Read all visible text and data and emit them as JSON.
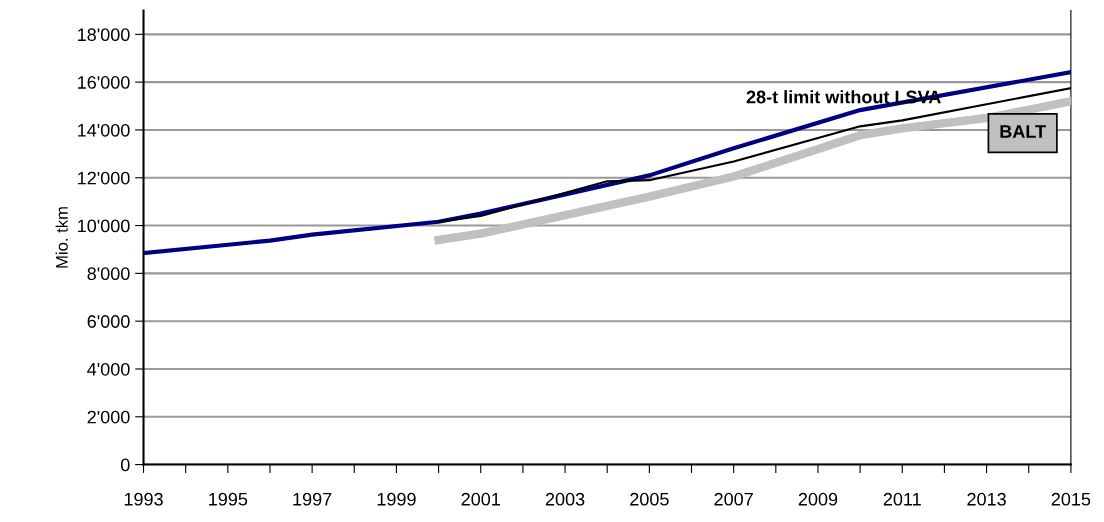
{
  "chart_data": {
    "type": "line",
    "ylabel": "Mio. tkm",
    "xlim": [
      1993,
      2015
    ],
    "ylim": [
      0,
      19000
    ],
    "xticks": [
      1993,
      {
        "value": 1994,
        "label": null
      },
      1995,
      {
        "value": 1996,
        "label": null
      },
      1997,
      {
        "value": 1998,
        "label": null
      },
      1999,
      {
        "value": 2000,
        "label": null
      },
      2001,
      {
        "value": 2002,
        "label": null
      },
      2003,
      {
        "value": 2004,
        "label": null
      },
      2005,
      {
        "value": 2006,
        "label": null
      },
      2007,
      {
        "value": 2008,
        "label": null
      },
      2009,
      {
        "value": 2010,
        "label": null
      },
      2011,
      {
        "value": 2012,
        "label": null
      },
      2013,
      {
        "value": 2014,
        "label": null
      },
      2015
    ],
    "yticks": [
      0,
      {
        "value": 2000,
        "label": "2'000"
      },
      {
        "value": 4000,
        "label": "4'000"
      },
      {
        "value": 6000,
        "label": "6'000"
      },
      {
        "value": 8000,
        "label": "8'000"
      },
      {
        "value": 10000,
        "label": "10'000"
      },
      {
        "value": 12000,
        "label": "12'000"
      },
      {
        "value": 14000,
        "label": "14'000"
      },
      {
        "value": 16000,
        "label": "16'000"
      },
      {
        "value": 18000,
        "label": "18'000"
      }
    ],
    "grid": "y",
    "marker": "none",
    "series": [
      {
        "color": "#c0c0c0",
        "x": [
          2000,
          2001,
          2005,
          2007,
          2010,
          2011,
          2013,
          2015
        ],
        "values": [
          9400,
          9660,
          11210,
          12050,
          13780,
          14070,
          14500,
          15200
        ]
      },
      {
        "color": "#000000",
        "x": [
          2000,
          2001,
          2004,
          2005,
          2007,
          2010,
          2011,
          2015
        ],
        "values": [
          10160,
          10400,
          11850,
          11900,
          12680,
          14150,
          14400,
          15750
        ]
      },
      {
        "color": "#000080",
        "x": [
          1993,
          1996,
          1997,
          2000,
          2001,
          2005,
          2007,
          2010,
          2015
        ],
        "values": [
          8850,
          9370,
          9620,
          10160,
          10500,
          12100,
          13230,
          14830,
          16420
        ]
      }
    ],
    "annotations": [
      "28-t limit without LSVA",
      "BALT"
    ]
  }
}
